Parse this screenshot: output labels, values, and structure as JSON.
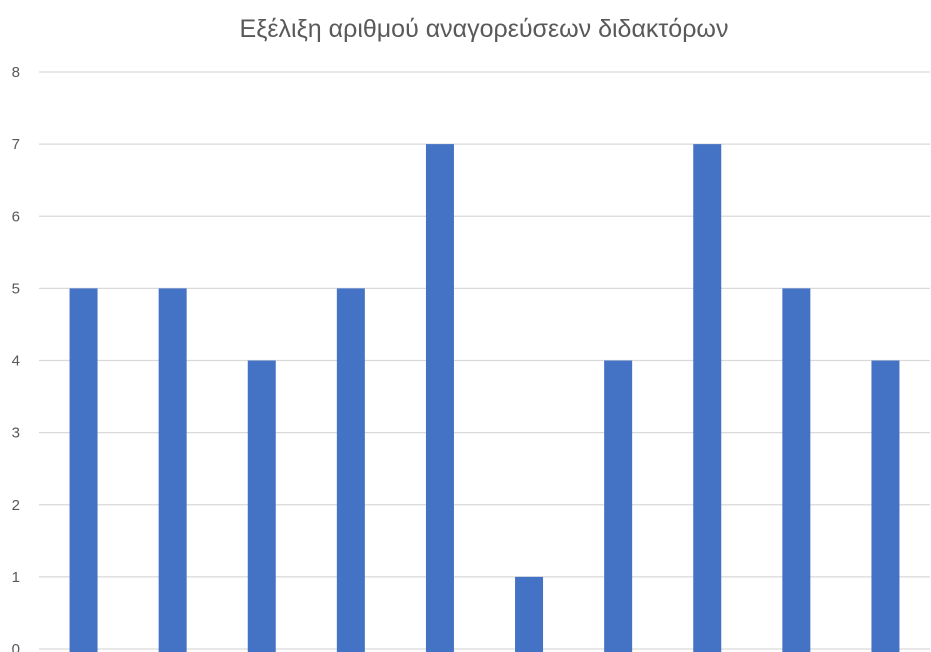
{
  "chart_data": {
    "type": "bar",
    "title": "Εξέλιξη αριθμού αναγορεύσεων διδακτόρων",
    "xlabel": "",
    "ylabel": "",
    "categories": [
      "",
      "",
      "",
      "",
      "",
      "",
      "",
      "",
      "",
      ""
    ],
    "values": [
      5,
      5,
      4,
      5,
      7,
      1,
      4,
      7,
      5,
      4
    ],
    "ylim": [
      0,
      8
    ],
    "yticks": [
      "0",
      "1",
      "2",
      "3",
      "4",
      "5",
      "6",
      "7",
      "8"
    ],
    "grid": true,
    "legend": "none",
    "bar_color": "#4472c4"
  }
}
